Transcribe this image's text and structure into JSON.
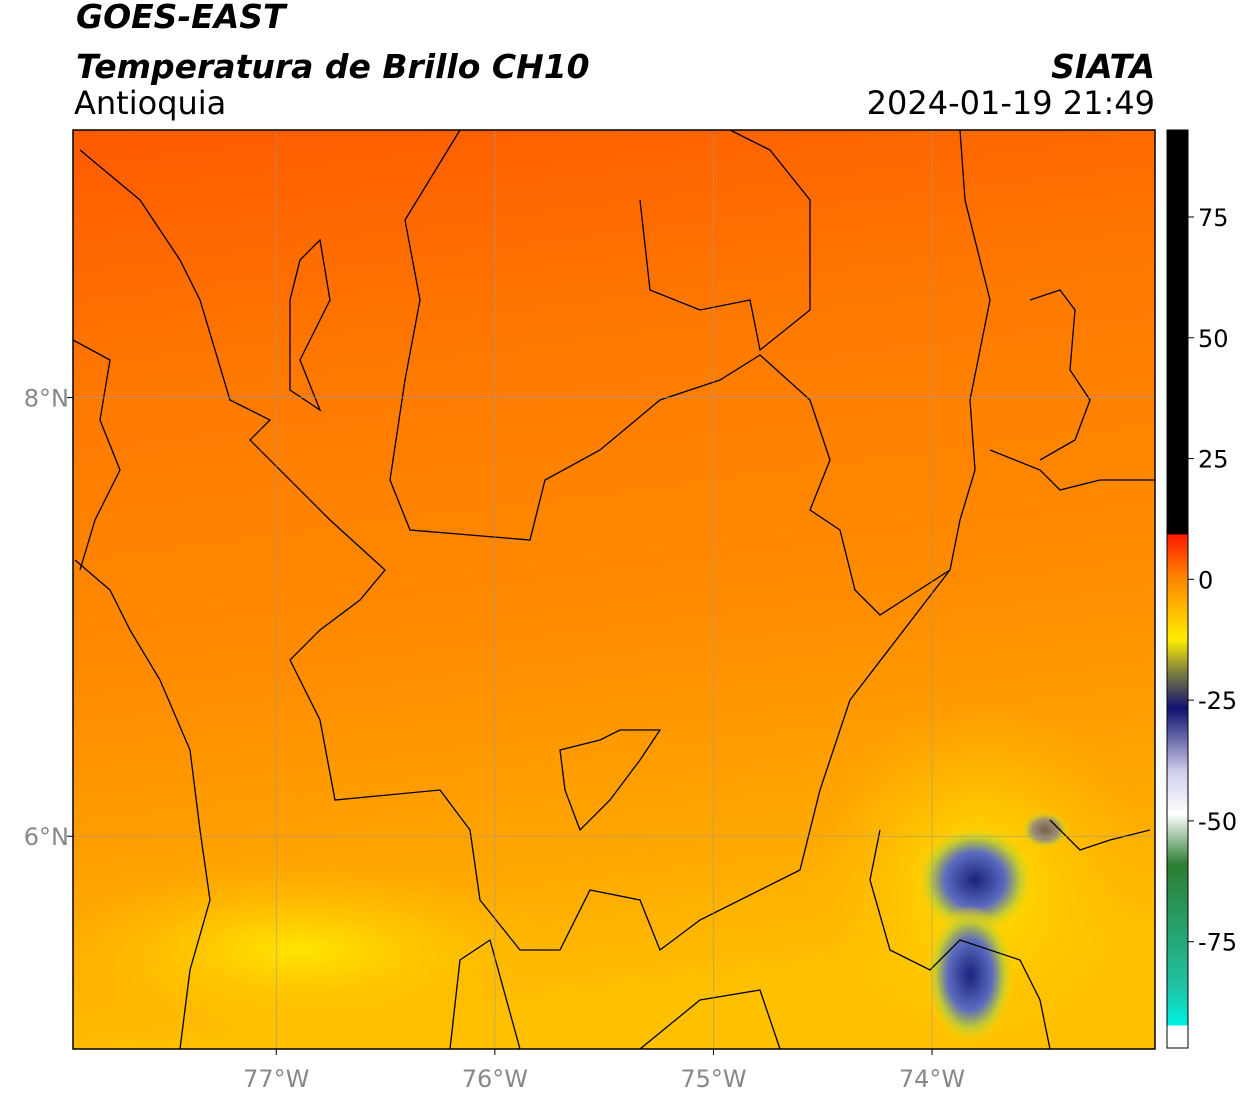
{
  "header": {
    "title": "GOES-EAST",
    "subtitle": "Temperatura de Brillo CH10",
    "region": "Antioquia",
    "source": "SIATA",
    "datetime": "2024-01-19 21:49"
  },
  "map": {
    "lon_range": [
      -77.93,
      -72.98
    ],
    "lat_range": [
      5.03,
      9.22
    ],
    "lon_ticks": [
      {
        "value": -77,
        "label": "77°W"
      },
      {
        "value": -76,
        "label": "76°W"
      },
      {
        "value": -75,
        "label": "75°W"
      },
      {
        "value": -74,
        "label": "74°W"
      }
    ],
    "lat_ticks": [
      {
        "value": 8,
        "label": "8°N"
      },
      {
        "value": 6,
        "label": "6°N"
      }
    ]
  },
  "colorbar": {
    "range": [
      -97,
      93
    ],
    "ticks": [
      75,
      50,
      25,
      0,
      -25,
      -50,
      -75
    ]
  }
}
